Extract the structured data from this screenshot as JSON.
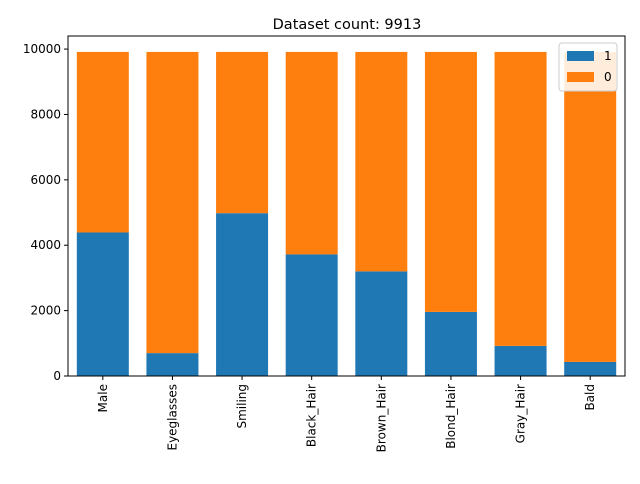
{
  "chart_data": {
    "type": "bar",
    "stacked": true,
    "title": "Dataset count: 9913",
    "xlabel": "",
    "ylabel": "",
    "categories": [
      "Male",
      "Eyeglasses",
      "Smiling",
      "Black_Hair",
      "Brown_Hair",
      "Blond_Hair",
      "Gray_Hair",
      "Bald"
    ],
    "series": [
      {
        "name": "1",
        "color": "#1f77b4",
        "values": [
          4390,
          700,
          4980,
          3720,
          3200,
          1960,
          920,
          430
        ]
      },
      {
        "name": "0",
        "color": "#ff7f0e",
        "values": [
          5523,
          9213,
          4933,
          6193,
          6713,
          7953,
          8993,
          9483
        ]
      }
    ],
    "ylim": [
      0,
      10400
    ],
    "yticks": [
      0,
      2000,
      4000,
      6000,
      8000,
      10000
    ],
    "grid": false,
    "legend": "top-right"
  }
}
